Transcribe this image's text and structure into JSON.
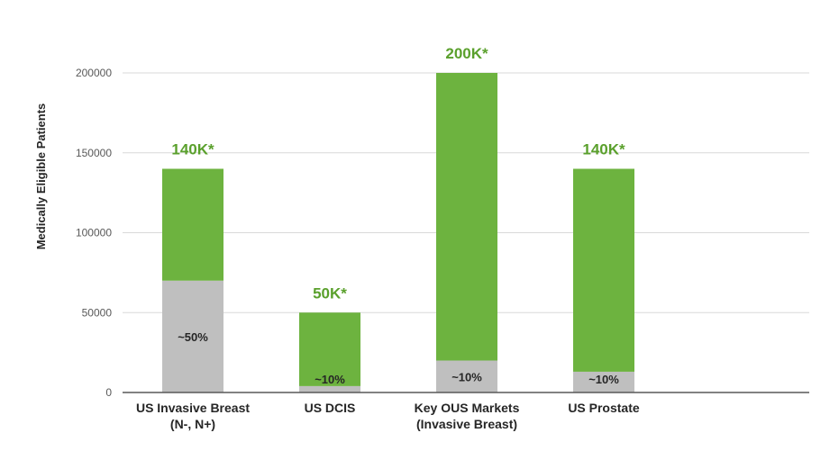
{
  "chart_data": {
    "type": "bar",
    "stacked": true,
    "ylabel": "Medically Eligible Patients",
    "ylim": [
      0,
      200000
    ],
    "yticks": [
      0,
      50000,
      100000,
      150000,
      200000
    ],
    "grid": true,
    "categories": [
      [
        "US Invasive Breast",
        "(N-, N+)"
      ],
      [
        "US DCIS"
      ],
      [
        "Key OUS Markets",
        "(Invasive Breast)"
      ],
      [
        "US Prostate"
      ]
    ],
    "series": [
      {
        "values": [
          70000,
          4000,
          20000,
          13000
        ],
        "color": "#bfbfbf"
      },
      {
        "values": [
          70000,
          46000,
          180000,
          127000
        ],
        "color": "#6db33f"
      }
    ],
    "totals": [
      140000,
      50000,
      200000,
      140000
    ],
    "total_labels": [
      "140K*",
      "50K*",
      "200K*",
      "140K*"
    ],
    "segment_labels": [
      "~50%",
      "~10%",
      "~10%",
      "~10%"
    ],
    "colors": {
      "total_label": "#5aa02c",
      "grid": "#d9d9d9",
      "axis": "#595959"
    }
  }
}
